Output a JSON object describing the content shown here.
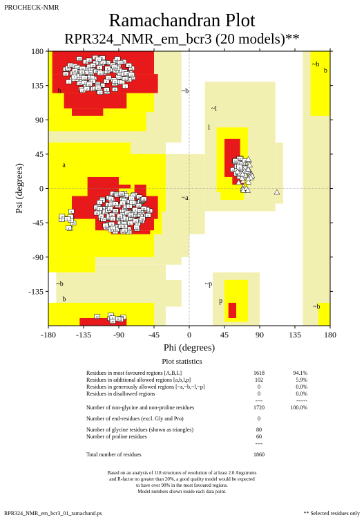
{
  "header": {
    "program": "PROCHECK-NMR",
    "title": "Ramachandran Plot",
    "subtitle": "RPR324_NMR_em_bcr3 (20 models)**"
  },
  "chart_data": {
    "type": "scatter",
    "xlabel": "Phi (degrees)",
    "ylabel": "Psi (degrees)",
    "xlim": [
      -180,
      180
    ],
    "ylim": [
      -180,
      180
    ],
    "xticks": [
      -180,
      -135,
      -90,
      -45,
      0,
      45,
      90,
      135,
      180
    ],
    "yticks": [
      180,
      135,
      90,
      45,
      0,
      -45,
      -90,
      -135
    ],
    "region_colors": {
      "most_favoured": "#e8191a",
      "additional_allowed": "#ffff00",
      "generously_allowed": "#f2f0b0",
      "disallowed": "#ffffff"
    },
    "region_labels": [
      "b",
      "~b",
      "~b",
      "b",
      "~l",
      "l",
      "a",
      "~a",
      "~b",
      "b",
      "~p",
      "p",
      "~b"
    ],
    "residue_labels": [
      "2",
      "16",
      "15",
      "9",
      "8",
      "3",
      "5",
      "1",
      "17",
      "6",
      "14",
      "12",
      "4",
      "20",
      "19",
      "11",
      "10",
      "13",
      "7",
      "18"
    ]
  },
  "stats": {
    "title": "Plot statistics",
    "rows": [
      {
        "label": "Residues in most favoured regions  [A,B,L]",
        "count": "1618",
        "pct": "94.1%"
      },
      {
        "label": "Residues in additional allowed regions  [a,b,l,p]",
        "count": "102",
        "pct": "5.9%"
      },
      {
        "label": "Residues in generously allowed regions  [~a,~b,~l,~p]",
        "count": "0",
        "pct": "0.0%"
      },
      {
        "label": "Residues in disallowed regions",
        "count": "0",
        "pct": "0.0%"
      }
    ],
    "sep1_count": "----",
    "sep1_pct": "------",
    "nongly_label": "Number of non-glycine and non-proline residues",
    "nongly_count": "1720",
    "nongly_pct": "100.0%",
    "end_label": "Number of end-residues (excl. Gly and Pro)",
    "end_count": "0",
    "gly_label": "Number of glycine residues (shown as triangles)",
    "gly_count": "80",
    "pro_label": "Number of proline residues",
    "pro_count": "60",
    "sep2_count": "----",
    "total_label": "Total number of residues",
    "total_count": "1860"
  },
  "footnote": [
    "Based on an analysis of 118 structures of resolution of at least 2.0 Angstroms",
    "and R-factor no greater than 20%, a good quality model would be expected",
    "to have over 90% in the most favoured regions.",
    "Model numbers shown inside each data point."
  ],
  "footer": {
    "left": "RPR324_NMR_em_bcr3_01_ramachand.ps",
    "right": "** Selected residues only"
  }
}
